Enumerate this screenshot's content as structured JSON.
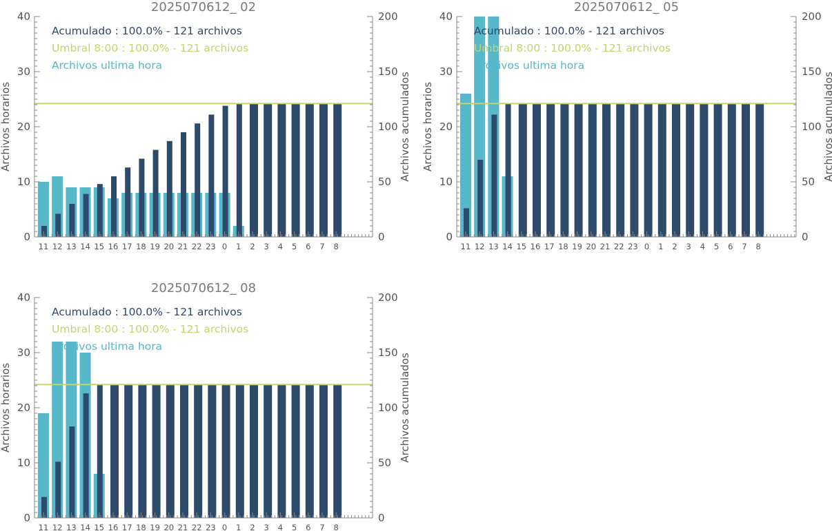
{
  "colors": {
    "acumulado": "#2e4a6b",
    "umbral": "#c9d26a",
    "horario": "#56b8c9",
    "axis": "#888888",
    "text": "#555555",
    "title": "#7a7a7a"
  },
  "chart_data": [
    {
      "type": "bar",
      "title": "2025070612_ 02",
      "ylabel": "Archivos horarios",
      "y2label": "Archivos acumulados",
      "ylim": [
        0,
        40
      ],
      "y2lim": [
        0,
        200
      ],
      "yticks": [
        "0",
        "10",
        "20",
        "30",
        "40"
      ],
      "y2ticks": [
        "0",
        "50",
        "100",
        "150",
        "200"
      ],
      "categories": [
        "11",
        "12",
        "13",
        "14",
        "15",
        "16",
        "17",
        "18",
        "19",
        "20",
        "21",
        "22",
        "23",
        "0",
        "1",
        "2",
        "3",
        "4",
        "5",
        "6",
        "7",
        "8"
      ],
      "legend": [
        {
          "text": "Acumulado : 100.0% - 121 archivos",
          "color_key": "acumulado"
        },
        {
          "text": "Umbral 8:00 : 100.0% - 121 archivos",
          "color_key": "umbral"
        },
        {
          "text": "Archivos ultima hora",
          "color_key": "horario"
        }
      ],
      "series": [
        {
          "name": "Archivos ultima hora",
          "axis": "left",
          "values": [
            10,
            11,
            9,
            9,
            9,
            7,
            8,
            8,
            8,
            8,
            8,
            8,
            8,
            8,
            2,
            0,
            0,
            0,
            0,
            0,
            0,
            0
          ]
        },
        {
          "name": "Acumulado",
          "axis": "right",
          "values": [
            10,
            21,
            30,
            39,
            48,
            55,
            63,
            71,
            79,
            87,
            95,
            103,
            111,
            119,
            121,
            121,
            121,
            121,
            121,
            121,
            121,
            121
          ]
        }
      ],
      "threshold": {
        "name": "Umbral 8:00",
        "value": 121,
        "axis": "right"
      }
    },
    {
      "type": "bar",
      "title": "2025070612_ 05",
      "ylabel": "Archivos horarios",
      "y2label": "Archivos acumulados",
      "ylim": [
        0,
        40
      ],
      "y2lim": [
        0,
        200
      ],
      "yticks": [
        "0",
        "10",
        "20",
        "30",
        "40"
      ],
      "y2ticks": [
        "0",
        "50",
        "100",
        "150",
        "200"
      ],
      "categories": [
        "11",
        "12",
        "13",
        "14",
        "15",
        "16",
        "17",
        "18",
        "19",
        "20",
        "21",
        "22",
        "23",
        "0",
        "1",
        "2",
        "3",
        "4",
        "5",
        "6",
        "7",
        "8"
      ],
      "legend": [
        {
          "text": "Acumulado : 100.0% - 121 archivos",
          "color_key": "acumulado"
        },
        {
          "text": "Umbral 8:00 : 100.0% - 121 archivos",
          "color_key": "umbral"
        },
        {
          "text": "Archivos ultima hora",
          "color_key": "horario"
        }
      ],
      "series": [
        {
          "name": "Archivos ultima hora",
          "axis": "left",
          "values": [
            26,
            44,
            41,
            11,
            0,
            0,
            0,
            0,
            0,
            0,
            0,
            0,
            0,
            0,
            0,
            0,
            0,
            0,
            0,
            0,
            0,
            0
          ]
        },
        {
          "name": "Acumulado",
          "axis": "right",
          "values": [
            26,
            70,
            111,
            121,
            121,
            121,
            121,
            121,
            121,
            121,
            121,
            121,
            121,
            121,
            121,
            121,
            121,
            121,
            121,
            121,
            121,
            121
          ]
        }
      ],
      "threshold": {
        "name": "Umbral 8:00",
        "value": 121,
        "axis": "right"
      }
    },
    {
      "type": "bar",
      "title": "2025070612_ 08",
      "ylabel": "Archivos horarios",
      "y2label": "Archivos acumulados",
      "ylim": [
        0,
        40
      ],
      "y2lim": [
        0,
        200
      ],
      "yticks": [
        "0",
        "10",
        "20",
        "30",
        "40"
      ],
      "y2ticks": [
        "0",
        "50",
        "100",
        "150",
        "200"
      ],
      "categories": [
        "11",
        "12",
        "13",
        "14",
        "15",
        "16",
        "17",
        "18",
        "19",
        "20",
        "21",
        "22",
        "23",
        "0",
        "1",
        "2",
        "3",
        "4",
        "5",
        "6",
        "7",
        "8"
      ],
      "legend": [
        {
          "text": "Acumulado : 100.0% - 121 archivos",
          "color_key": "acumulado"
        },
        {
          "text": "Umbral 8:00 : 100.0% - 121 archivos",
          "color_key": "umbral"
        },
        {
          "text": "Archivos ultima hora",
          "color_key": "horario"
        }
      ],
      "series": [
        {
          "name": "Archivos ultima hora",
          "axis": "left",
          "values": [
            19,
            32,
            32,
            30,
            8,
            0,
            0,
            0,
            0,
            0,
            0,
            0,
            0,
            0,
            0,
            0,
            0,
            0,
            0,
            0,
            0,
            0
          ]
        },
        {
          "name": "Acumulado",
          "axis": "right",
          "values": [
            19,
            51,
            83,
            113,
            121,
            121,
            121,
            121,
            121,
            121,
            121,
            121,
            121,
            121,
            121,
            121,
            121,
            121,
            121,
            121,
            121,
            121
          ]
        }
      ],
      "threshold": {
        "name": "Umbral 8:00",
        "value": 121,
        "axis": "right"
      }
    }
  ]
}
